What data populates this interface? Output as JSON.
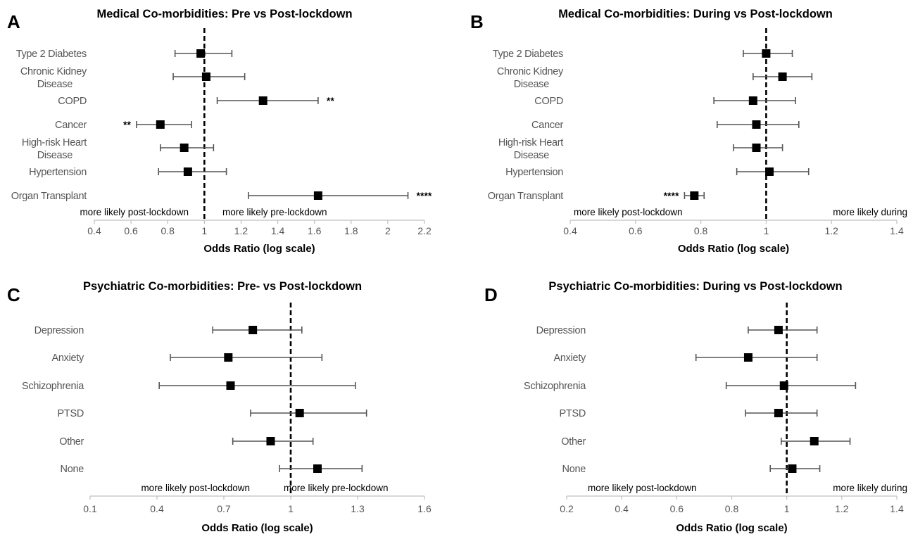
{
  "chart_data": [
    {
      "type": "forest",
      "panel_label": "A",
      "title": "Medical Co-morbidities: Pre vs Post-lockdown",
      "xlabel": "Odds Ratio (log scale)",
      "x_ticks": [
        "0.4",
        "0.6",
        "0.8",
        "1",
        "1.2",
        "1.4",
        "1.6",
        "1.8",
        "2",
        "2.2"
      ],
      "xlim": [
        0.4,
        2.2
      ],
      "x_scale": "log",
      "reference_line": 1,
      "left_note": "more likely post-lockdown",
      "right_note": "more likely pre-lockdown",
      "categories": [
        {
          "label": [
            "Type 2 Diabetes"
          ],
          "or": 0.98,
          "lo": 0.84,
          "hi": 1.15,
          "sig": ""
        },
        {
          "label": [
            "Chronic Kidney",
            "Disease"
          ],
          "or": 1.01,
          "lo": 0.83,
          "hi": 1.22,
          "sig": ""
        },
        {
          "label": [
            "COPD"
          ],
          "or": 1.32,
          "lo": 1.07,
          "hi": 1.62,
          "sig": "**"
        },
        {
          "label": [
            "Cancer"
          ],
          "or": 0.76,
          "lo": 0.63,
          "hi": 0.93,
          "sig": "**"
        },
        {
          "label": [
            "High-risk Heart",
            "Disease"
          ],
          "or": 0.89,
          "lo": 0.76,
          "hi": 1.05,
          "sig": ""
        },
        {
          "label": [
            "Hypertension"
          ],
          "or": 0.91,
          "lo": 0.75,
          "hi": 1.12,
          "sig": ""
        },
        {
          "label": [
            "Organ Transplant"
          ],
          "or": 1.62,
          "lo": 1.24,
          "hi": 2.11,
          "sig": "****"
        }
      ]
    },
    {
      "type": "forest",
      "panel_label": "B",
      "title": "Medical Co-morbidities: During vs Post-lockdown",
      "xlabel": "Odds Ratio (log scale)",
      "x_ticks": [
        "0.4",
        "0.6",
        "0.8",
        "1",
        "1.2",
        "1.4"
      ],
      "xlim": [
        0.4,
        1.4
      ],
      "x_scale": "log",
      "reference_line": 1,
      "left_note": "more likely post-lockdown",
      "right_note": "more likely during",
      "categories": [
        {
          "label": [
            "Type 2 Diabetes"
          ],
          "or": 1.0,
          "lo": 0.93,
          "hi": 1.08,
          "sig": ""
        },
        {
          "label": [
            "Chronic Kidney",
            "Disease"
          ],
          "or": 1.05,
          "lo": 0.96,
          "hi": 1.14,
          "sig": ""
        },
        {
          "label": [
            "COPD"
          ],
          "or": 0.96,
          "lo": 0.84,
          "hi": 1.09,
          "sig": ""
        },
        {
          "label": [
            "Cancer"
          ],
          "or": 0.97,
          "lo": 0.85,
          "hi": 1.1,
          "sig": ""
        },
        {
          "label": [
            "High-risk Heart",
            "Disease"
          ],
          "or": 0.97,
          "lo": 0.9,
          "hi": 1.05,
          "sig": ""
        },
        {
          "label": [
            "Hypertension"
          ],
          "or": 1.01,
          "lo": 0.91,
          "hi": 1.13,
          "sig": ""
        },
        {
          "label": [
            "Organ Transplant"
          ],
          "or": 0.78,
          "lo": 0.75,
          "hi": 0.81,
          "sig": "****"
        }
      ]
    },
    {
      "type": "forest",
      "panel_label": "C",
      "title": "Psychiatric Co-morbidities: Pre- vs Post-lockdown",
      "xlabel": "Odds Ratio (log scale)",
      "x_ticks": [
        "0.1",
        "0.4",
        "0.7",
        "1",
        "1.3",
        "1.6"
      ],
      "xlim": [
        0.1,
        1.6
      ],
      "x_scale": "log",
      "reference_line": 1,
      "left_note": "more likely post-lockdown",
      "right_note": "more likely pre-lockdown",
      "categories": [
        {
          "label": [
            "Depression"
          ],
          "or": 0.83,
          "lo": 0.65,
          "hi": 1.05,
          "sig": ""
        },
        {
          "label": [
            "Anxiety"
          ],
          "or": 0.72,
          "lo": 0.46,
          "hi": 1.14,
          "sig": ""
        },
        {
          "label": [
            "Schizophrenia"
          ],
          "or": 0.73,
          "lo": 0.41,
          "hi": 1.29,
          "sig": ""
        },
        {
          "label": [
            "PTSD"
          ],
          "or": 1.04,
          "lo": 0.82,
          "hi": 1.34,
          "sig": ""
        },
        {
          "label": [
            "Other"
          ],
          "or": 0.91,
          "lo": 0.74,
          "hi": 1.1,
          "sig": ""
        },
        {
          "label": [
            "None"
          ],
          "or": 1.12,
          "lo": 0.95,
          "hi": 1.32,
          "sig": ""
        }
      ]
    },
    {
      "type": "forest",
      "panel_label": "D",
      "title": "Psychiatric Co-morbidities: During vs Post-lockdown",
      "xlabel": "Odds Ratio (log scale)",
      "x_ticks": [
        "0.2",
        "0.4",
        "0.6",
        "0.8",
        "1",
        "1.2",
        "1.4"
      ],
      "xlim": [
        0.2,
        1.4
      ],
      "x_scale": "log",
      "reference_line": 1,
      "left_note": "more likely post-lockdown",
      "right_note": "more likely during",
      "categories": [
        {
          "label": [
            "Depression"
          ],
          "or": 0.97,
          "lo": 0.86,
          "hi": 1.11,
          "sig": ""
        },
        {
          "label": [
            "Anxiety"
          ],
          "or": 0.86,
          "lo": 0.67,
          "hi": 1.11,
          "sig": ""
        },
        {
          "label": [
            "Schizophrenia"
          ],
          "or": 0.99,
          "lo": 0.78,
          "hi": 1.25,
          "sig": ""
        },
        {
          "label": [
            "PTSD"
          ],
          "or": 0.97,
          "lo": 0.85,
          "hi": 1.11,
          "sig": ""
        },
        {
          "label": [
            "Other"
          ],
          "or": 1.1,
          "lo": 0.98,
          "hi": 1.23,
          "sig": ""
        },
        {
          "label": [
            "None"
          ],
          "or": 1.02,
          "lo": 0.94,
          "hi": 1.12,
          "sig": ""
        }
      ]
    }
  ]
}
